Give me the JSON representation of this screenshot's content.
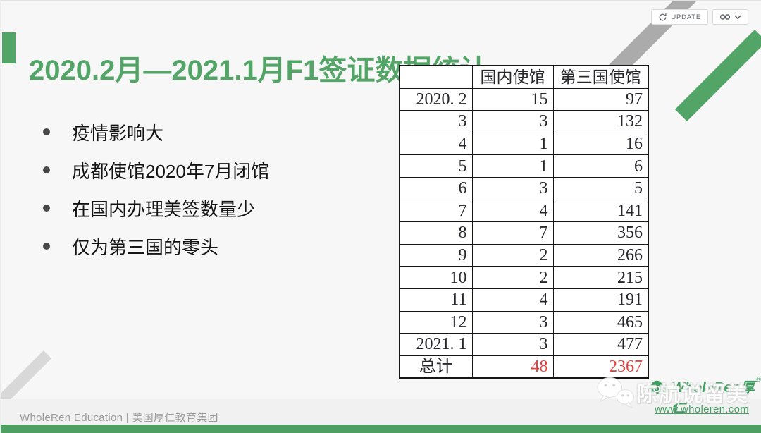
{
  "app": {
    "update_label": "UPDATE",
    "icons": {
      "update": "refresh-icon",
      "share": "link-icon",
      "share_expand": "chevron-down-icon",
      "watermark": "wechat-icon",
      "logo": "cloud-logo-icon"
    }
  },
  "slide": {
    "title": "2020.2月—2021.1月F1签证数据统计",
    "bullets": [
      "疫情影响大",
      "成都使馆2020年7月闭馆",
      "在国内办理美签数量少",
      "仅为第三国的零头"
    ],
    "table": {
      "headers": [
        "",
        "国内使馆",
        "第三国使馆"
      ],
      "rows": [
        [
          "2020. 2",
          "15",
          "97"
        ],
        [
          "3",
          "3",
          "132"
        ],
        [
          "4",
          "1",
          "16"
        ],
        [
          "5",
          "1",
          "6"
        ],
        [
          "6",
          "3",
          "5"
        ],
        [
          "7",
          "4",
          "141"
        ],
        [
          "8",
          "7",
          "356"
        ],
        [
          "9",
          "2",
          "266"
        ],
        [
          "10",
          "2",
          "215"
        ],
        [
          "11",
          "4",
          "191"
        ],
        [
          "12",
          "3",
          "465"
        ],
        [
          "2021. 1",
          "3",
          "477"
        ]
      ],
      "total": {
        "label": "总计",
        "domestic": "48",
        "third_country": "2367"
      }
    }
  },
  "footer": {
    "text": "WholeRen Education | 美国厚仁教育集团",
    "brand": "WholeRen厚仁",
    "reg_mark": "®",
    "website": "www.wholeren.com",
    "watermark": "陈航说留美"
  },
  "colors": {
    "accent_green": "#53a567",
    "bar_green": "#4f9e62",
    "total_red": "#e8413c"
  }
}
